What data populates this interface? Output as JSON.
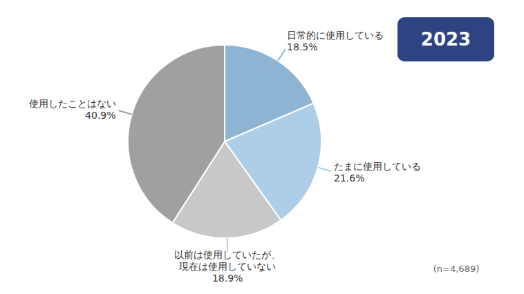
{
  "chart_data": {
    "type": "pie",
    "categories": [
      "日常的に使用している",
      "たまに使用している",
      "以前は使用していたが、\n現在は使用していない",
      "使用したことはない"
    ],
    "values": [
      18.5,
      21.6,
      18.9,
      40.9
    ],
    "value_labels": [
      "18.5%",
      "21.6%",
      "18.9%",
      "40.9%"
    ],
    "colors": [
      "#8eb4d4",
      "#aecde8",
      "#c8c8c8",
      "#a0a0a0"
    ],
    "annotations": [
      "2023",
      "(n=4,689)"
    ]
  }
}
